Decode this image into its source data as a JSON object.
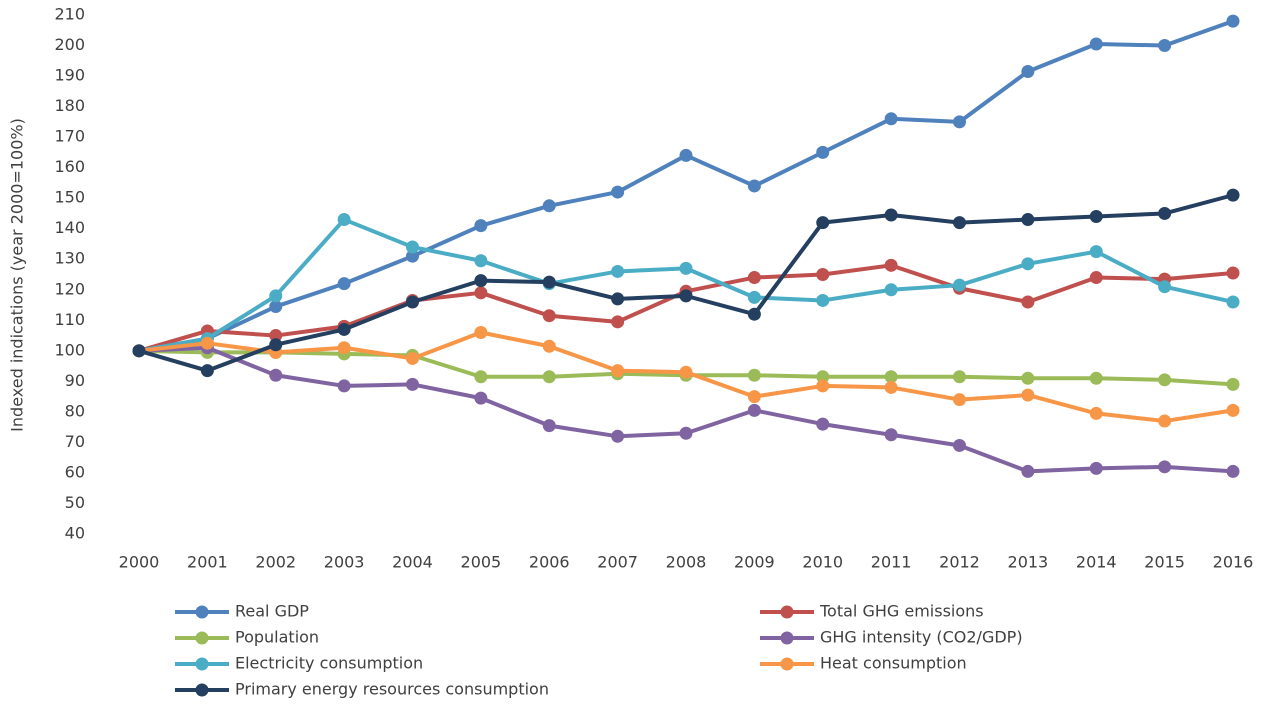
{
  "chart_data": {
    "type": "line",
    "y_label": "Indexed indications (year 2000=100%)",
    "categories": [
      "2000",
      "2001",
      "2002",
      "2003",
      "2004",
      "2005",
      "2006",
      "2007",
      "2008",
      "2009",
      "2010",
      "2011",
      "2012",
      "2013",
      "2014",
      "2015",
      "2016"
    ],
    "ylim": [
      40,
      210
    ],
    "yticks": [
      40,
      50,
      60,
      70,
      80,
      90,
      100,
      110,
      120,
      130,
      140,
      150,
      160,
      170,
      180,
      190,
      200,
      210
    ],
    "grid": false,
    "legend": "bottom",
    "series": [
      {
        "name": "Real GDP",
        "color": "#4f81bd",
        "values": [
          100,
          104,
          114.5,
          122,
          131,
          141,
          147.5,
          152,
          164,
          154,
          165,
          176,
          175,
          191.5,
          200.5,
          200,
          208
        ]
      },
      {
        "name": "Total GHG emissions",
        "color": "#c0504d",
        "values": [
          100,
          106.5,
          105,
          108,
          116.5,
          119,
          111.5,
          109.5,
          119.5,
          124,
          125,
          128,
          120.5,
          116,
          124,
          123.5,
          125.5
        ]
      },
      {
        "name": "Population",
        "color": "#9bbb59",
        "values": [
          100,
          99.5,
          99.5,
          99,
          98.5,
          91.5,
          91.5,
          92.5,
          92,
          92,
          91.5,
          91.5,
          91.5,
          91,
          91,
          90.5,
          89
        ]
      },
      {
        "name": "GHG intensity (CO2/GDP)",
        "color": "#8064a2",
        "values": [
          100,
          101,
          92,
          88.5,
          89,
          84.5,
          75.5,
          72,
          73,
          80.5,
          76,
          72.5,
          69,
          60.5,
          61.5,
          62,
          60.5
        ]
      },
      {
        "name": "Electricity consumption",
        "color": "#4bacc6",
        "values": [
          100,
          104,
          118,
          143,
          134,
          129.5,
          122,
          126,
          127,
          117.5,
          116.5,
          120,
          121.5,
          128.5,
          132.5,
          121,
          116
        ]
      },
      {
        "name": "Heat consumption",
        "color": "#f79646",
        "values": [
          100,
          102.5,
          99.5,
          101,
          97.5,
          106,
          101.5,
          93.5,
          93,
          85,
          88.5,
          88,
          84,
          85.5,
          79.5,
          77,
          80.5
        ]
      },
      {
        "name": "Primary energy resources consumption",
        "color": "#243f60",
        "values": [
          100,
          93.5,
          102,
          107,
          116,
          123,
          122.5,
          117,
          118,
          112,
          142,
          144.5,
          142,
          143,
          144,
          145,
          151
        ]
      }
    ]
  }
}
